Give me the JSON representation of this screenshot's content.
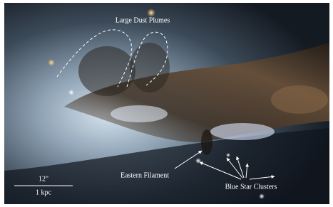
{
  "annotations": {
    "plumes": "Large Dust Plumes",
    "filament": "Eastern Filament",
    "clusters": "Blue Star Clusters"
  },
  "scale_bar": {
    "angular": "12\"",
    "physical": "1 kpc"
  }
}
